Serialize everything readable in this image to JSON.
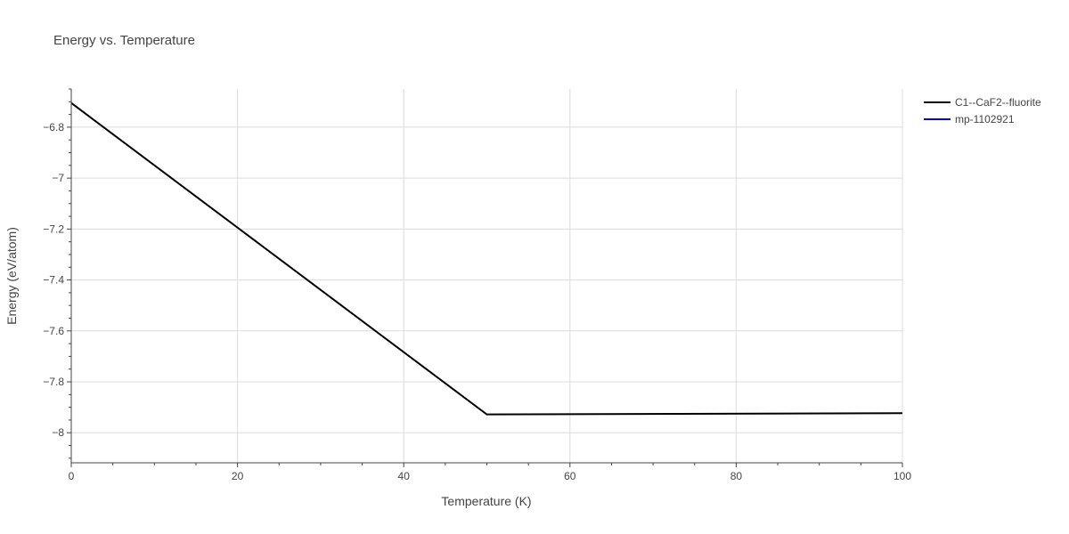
{
  "chart_data": {
    "type": "line",
    "title": "Energy vs. Temperature",
    "xlabel": "Temperature (K)",
    "ylabel": "Energy (eV/atom)",
    "xlim": [
      0,
      100
    ],
    "ylim": [
      -8.118,
      -6.65
    ],
    "x_ticks": [
      0,
      20,
      40,
      60,
      80,
      100
    ],
    "x_tick_labels": [
      "0",
      "20",
      "40",
      "60",
      "80",
      "100"
    ],
    "y_ticks": [
      -8,
      -7.8,
      -7.6,
      -7.4,
      -7.2,
      -7,
      -6.8
    ],
    "y_tick_labels": [
      "−8",
      "−7.8",
      "−7.6",
      "−7.4",
      "−7.2",
      "−7",
      "−6.8"
    ],
    "grid": true,
    "legend_position": "top-right",
    "series": [
      {
        "name": "C1--CaF2--fluorite",
        "color": "#000000",
        "x": [
          0,
          50,
          100
        ],
        "y": [
          -6.705,
          -7.928,
          -7.923
        ]
      },
      {
        "name": "mp-1102921",
        "color": "#0000ff",
        "x": [],
        "y": []
      }
    ]
  }
}
